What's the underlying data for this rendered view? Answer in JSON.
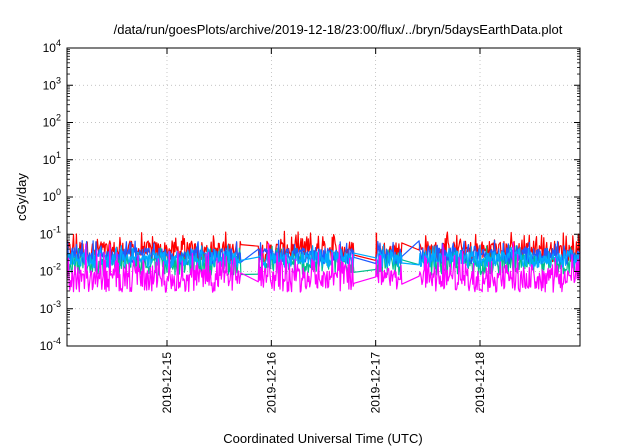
{
  "chart_data": {
    "type": "line",
    "title": "/data/run/goesPlots/archive/2019-12-18/23:00/flux/../bryn/5daysEarthData.plot",
    "xlabel": "Coordinated Universal Time (UTC)",
    "ylabel": "cGy/day",
    "yscale": "log",
    "ylim": [
      0.0001,
      10000
    ],
    "xlim": [
      "2019-12-14 01:00",
      "2019-12-18 23:00"
    ],
    "grid": true,
    "yticks": [
      {
        "value": 0.0001,
        "base": "10",
        "exp": "-4"
      },
      {
        "value": 0.001,
        "base": "10",
        "exp": "-3"
      },
      {
        "value": 0.01,
        "base": "10",
        "exp": "-2"
      },
      {
        "value": 0.1,
        "base": "10",
        "exp": "-1"
      },
      {
        "value": 1,
        "base": "10",
        "exp": "0"
      },
      {
        "value": 10,
        "base": "10",
        "exp": "1"
      },
      {
        "value": 100,
        "base": "10",
        "exp": "2"
      },
      {
        "value": 1000,
        "base": "10",
        "exp": "3"
      },
      {
        "value": 10000,
        "base": "10",
        "exp": "4"
      }
    ],
    "xticks": [
      {
        "value": "2019-12-15",
        "label": "2019-12-15"
      },
      {
        "value": "2019-12-16",
        "label": "2019-12-16"
      },
      {
        "value": "2019-12-17",
        "label": "2019-12-17"
      },
      {
        "value": "2019-12-18",
        "label": "2019-12-18"
      }
    ],
    "gaps": [
      {
        "from": "2019-12-15 17:00",
        "to": "2019-12-15 21:00"
      },
      {
        "from": "2019-12-16 19:00",
        "to": "2019-12-17 00:00"
      },
      {
        "from": "2019-12-17 06:00",
        "to": "2019-12-17 10:00"
      }
    ],
    "series": [
      {
        "color": "#ff0000",
        "base": 0.035,
        "jitter": 0.28,
        "spike": 1.8
      },
      {
        "color": "#00c08a",
        "base": 0.016,
        "jitter": 0.3,
        "spike": 1.6
      },
      {
        "color": "#1e5aff",
        "base": 0.026,
        "jitter": 0.22,
        "spike": 1.6
      },
      {
        "color": "#00aaff",
        "base": 0.021,
        "jitter": 0.22,
        "spike": 1.5
      },
      {
        "color": "#ff00ff",
        "base": 0.0055,
        "jitter": 0.3,
        "spike": 3.2
      }
    ]
  }
}
